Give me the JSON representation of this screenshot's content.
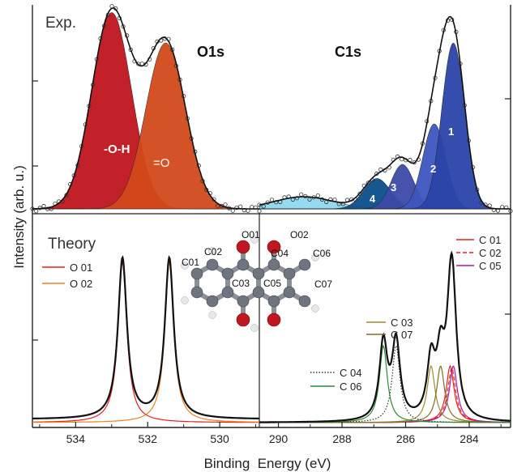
{
  "chart_data": {
    "type": "line",
    "xlabel": "Binding  Energy (eV)",
    "ylabel": "Intensity (arb. u.)",
    "x_ticks_o1s": [
      "534",
      "532",
      "530"
    ],
    "x_ticks_c1s": [
      "290",
      "288",
      "286",
      "284"
    ],
    "xlim_o1s": [
      535.2,
      528.9
    ],
    "xlim_c1s": [
      290.6,
      282.7
    ],
    "panels": [
      {
        "name": "Exp.",
        "regions": [
          {
            "label": "O1s",
            "components": [
              {
                "label": "-O-H",
                "center": 533.0,
                "height": 0.97,
                "fwhm": 1.3,
                "color": "#c0151f"
              },
              {
                "label": "=O",
                "center": 531.5,
                "height": 0.82,
                "fwhm": 1.3,
                "color": "#d24a1a"
              }
            ]
          },
          {
            "label": "C1s",
            "components": [
              {
                "label": "",
                "center": 289.2,
                "height": 0.06,
                "fwhm": 2.2,
                "color": "#8ed8f0"
              },
              {
                "label": "4",
                "center": 286.9,
                "height": 0.15,
                "fwhm": 1.0,
                "color": "#0c4f8a"
              },
              {
                "label": "3",
                "center": 286.1,
                "height": 0.22,
                "fwhm": 0.85,
                "color": "#3c4aa8"
              },
              {
                "label": "2",
                "center": 285.1,
                "height": 0.42,
                "fwhm": 0.85,
                "color": "#3d56c0"
              },
              {
                "label": "1",
                "center": 284.5,
                "height": 0.82,
                "fwhm": 0.85,
                "color": "#2a43a8"
              }
            ]
          }
        ]
      },
      {
        "name": "Theory",
        "legend_left": [
          {
            "name": "O 01",
            "color": "#e32020",
            "style": "solid"
          },
          {
            "name": "O 02",
            "color": "#f08020",
            "style": "solid"
          }
        ],
        "legend_right_top": [
          {
            "name": "C 01",
            "color": "#e32020",
            "style": "solid"
          },
          {
            "name": "C 02",
            "color": "#e32020",
            "style": "dashed"
          },
          {
            "name": "C 05",
            "color": "#b0179a",
            "style": "solid"
          }
        ],
        "legend_right_mid": [
          {
            "name": "C 03",
            "color": "#a08a30",
            "style": "solid"
          },
          {
            "name": "C 07",
            "color": "#807020",
            "style": "solid"
          }
        ],
        "legend_right_bottom": [
          {
            "name": "C 04",
            "color": "#333333",
            "style": "dotted"
          },
          {
            "name": "C 06",
            "color": "#2a8a3a",
            "style": "solid"
          }
        ],
        "peaks": [
          {
            "name": "O 01",
            "center": 532.7,
            "height": 0.79,
            "fwhm": 0.3,
            "color": "#e32020",
            "style": "solid"
          },
          {
            "name": "O 02",
            "center": 531.4,
            "height": 0.79,
            "fwhm": 0.3,
            "color": "#f08020",
            "style": "solid"
          },
          {
            "name": "C 01",
            "center": 284.6,
            "height": 0.28,
            "fwhm": 0.3,
            "color": "#e32020",
            "style": "solid"
          },
          {
            "name": "C 02",
            "center": 284.55,
            "height": 0.27,
            "fwhm": 0.3,
            "color": "#e32020",
            "style": "dashed"
          },
          {
            "name": "C 05",
            "center": 284.5,
            "height": 0.28,
            "fwhm": 0.3,
            "color": "#b0179a",
            "style": "solid"
          },
          {
            "name": "C 03",
            "center": 285.2,
            "height": 0.28,
            "fwhm": 0.3,
            "color": "#a08a30",
            "style": "solid"
          },
          {
            "name": "C 07",
            "center": 284.9,
            "height": 0.28,
            "fwhm": 0.3,
            "color": "#807020",
            "style": "solid"
          },
          {
            "name": "C 04",
            "center": 286.3,
            "height": 0.38,
            "fwhm": 0.3,
            "color": "#333333",
            "style": "dotted"
          },
          {
            "name": "C 06",
            "center": 286.7,
            "height": 0.38,
            "fwhm": 0.3,
            "color": "#2a8a3a",
            "style": "solid"
          }
        ]
      }
    ],
    "molecule_labels": [
      "O01",
      "O02",
      "C01",
      "C02",
      "C04",
      "C06",
      "C03",
      "C05",
      "C07"
    ]
  }
}
